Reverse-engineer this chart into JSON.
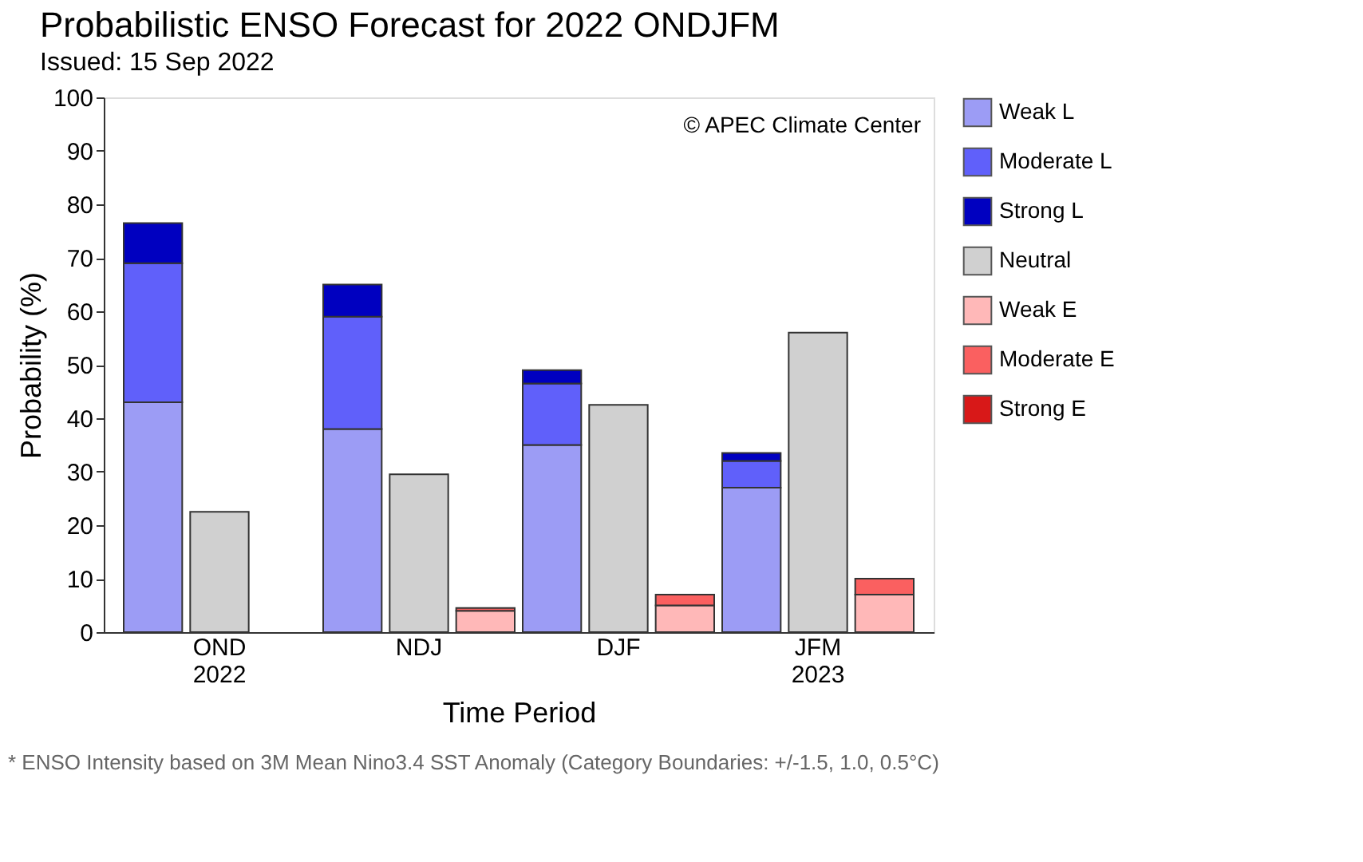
{
  "chart_data": {
    "type": "bar",
    "title": "Probabilistic ENSO Forecast for 2022 ONDJFM",
    "subtitle": "Issued: 15 Sep 2022",
    "xlabel": "Time Period",
    "ylabel": "Probability (%)",
    "categories": [
      null,
      "OND 2022",
      null,
      null,
      "NDJ",
      null,
      null,
      "DJF",
      null,
      null,
      "JFM 2023",
      null
    ],
    "stacked": true,
    "series": [
      {
        "name": "Weak L",
        "color": "#9c9cf5",
        "values": [
          43,
          null,
          null,
          38,
          null,
          null,
          35,
          null,
          null,
          27,
          null,
          null
        ]
      },
      {
        "name": "Moderate L",
        "color": "#6060fa",
        "values": [
          26,
          null,
          null,
          21,
          null,
          null,
          11.5,
          null,
          null,
          5,
          null,
          null
        ]
      },
      {
        "name": "Strong L",
        "color": "#0000c0",
        "values": [
          7.5,
          null,
          null,
          6,
          null,
          null,
          2.5,
          null,
          null,
          1.5,
          null,
          null
        ]
      },
      {
        "name": "Neutral",
        "color": "#d0d0d0",
        "values": [
          null,
          22.5,
          null,
          null,
          29.5,
          null,
          null,
          42.5,
          null,
          null,
          56,
          null
        ]
      },
      {
        "name": "Weak E",
        "color": "#ffb8b8",
        "values": [
          null,
          null,
          null,
          null,
          null,
          4,
          null,
          null,
          5,
          null,
          null,
          7
        ]
      },
      {
        "name": "Moderate E",
        "color": "#fa6060",
        "values": [
          null,
          null,
          null,
          null,
          null,
          0.5,
          null,
          null,
          2,
          null,
          null,
          3
        ]
      },
      {
        "name": "Strong E",
        "color": "#d81818",
        "values": [
          null,
          null,
          null,
          null,
          null,
          null,
          null,
          null,
          null,
          null,
          null,
          null
        ]
      }
    ],
    "ylim": [
      0,
      100
    ],
    "yticks": [
      0,
      10,
      20,
      30,
      40,
      50,
      60,
      70,
      80,
      90,
      100
    ],
    "grid": false,
    "legend": "right",
    "annotations": [
      "© APEC Climate Center",
      "* ENSO Intensity based on 3M Mean Nino3.4 SST Anomaly (Category Boundaries: +/-1.5, 1.0, 0.5°C)"
    ]
  }
}
